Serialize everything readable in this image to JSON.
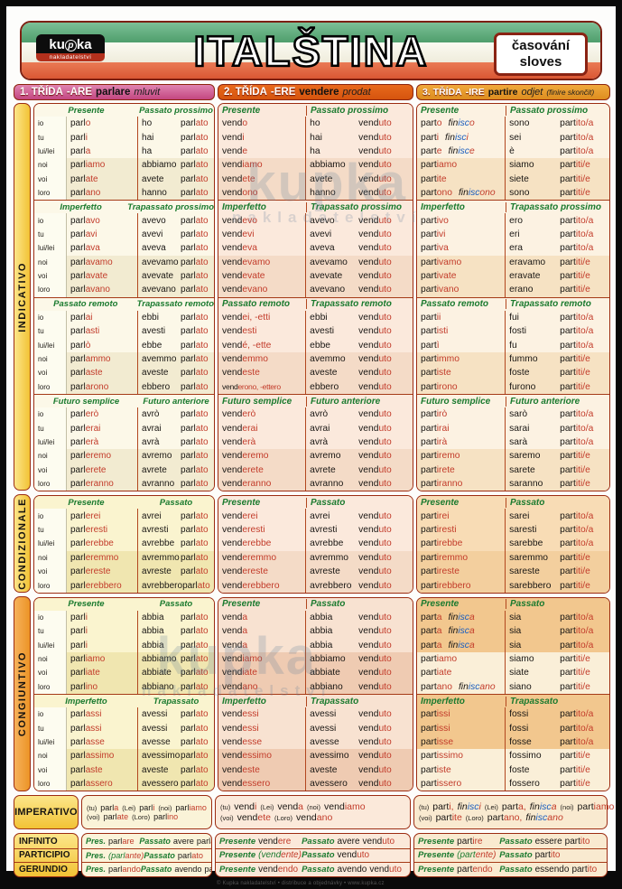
{
  "header": {
    "logo_top": "kupka",
    "logo_sub": "nakladatelství",
    "title": "ITALŠTINA",
    "badge_line1": "časování",
    "badge_line2": "sloves"
  },
  "colors": {
    "flag_green": "#5aa879",
    "flag_white": "#f2efe2",
    "flag_red": "#df6340",
    "ending_red": "#c23b2a",
    "isc_blue": "#1b5ebe",
    "tense_green": "#1a7a2e",
    "border_red": "#9c2c12",
    "class1_pink": "#c34680",
    "class2_orange": "#d5540e",
    "class3_amber": "#dd8d1f"
  },
  "pronouns": [
    "io",
    "tu",
    "lui/lei",
    "noi",
    "voi",
    "loro"
  ],
  "moods": [
    {
      "id": "ind",
      "label": "INDICATIVO",
      "pairs": [
        [
          "Presente",
          "Passato prossimo"
        ],
        [
          "Imperfetto",
          "Trapassato prossimo"
        ],
        [
          "Passato remoto",
          "Trapassato remoto"
        ],
        [
          "Futuro semplice",
          "Futuro anteriore"
        ]
      ]
    },
    {
      "id": "cond",
      "label": "CONDIZIONALE",
      "pairs": [
        [
          "Presente",
          "Passato"
        ]
      ]
    },
    {
      "id": "cong",
      "label": "CONGIUNTIVO",
      "pairs": [
        [
          "Presente",
          "Passato"
        ],
        [
          "Imperfetto",
          "Trapassato"
        ]
      ]
    }
  ],
  "imperativo_label": "IMPERATIVO",
  "nonfinite_labels": [
    "INFINITO",
    "PARTICIPIO",
    "GERUNDIO"
  ],
  "columns": [
    {
      "id": "are",
      "header": {
        "klass": "1. TŘÍDA",
        "suffix": "-ARE",
        "verb": "parlare",
        "translation": "mluvit",
        "note": ""
      },
      "ind": [
        {
          "left": [
            "parl|o",
            "parl|i",
            "parl|a",
            "parl|iamo",
            "parl|ate",
            "parl|ano"
          ],
          "right": [
            "ho parl|ato",
            "hai parl|ato",
            "ha parl|ato",
            "abbiamo parl|ato",
            "avete parl|ato",
            "hanno parl|ato"
          ]
        },
        {
          "left": [
            "parl|avo",
            "parl|avi",
            "parl|ava",
            "parl|avamo",
            "parl|avate",
            "parl|avano"
          ],
          "right": [
            "avevo parl|ato",
            "avevi parl|ato",
            "aveva parl|ato",
            "avevamo parl|ato",
            "avevate parl|ato",
            "avevano parl|ato"
          ]
        },
        {
          "left": [
            "parl|ai",
            "parl|asti",
            "parl|ò",
            "parl|ammo",
            "parl|aste",
            "parl|arono"
          ],
          "right": [
            "ebbi parl|ato",
            "avesti parl|ato",
            "ebbe parl|ato",
            "avemmo parl|ato",
            "aveste parl|ato",
            "ebbero parl|ato"
          ]
        },
        {
          "left": [
            "parl|erò",
            "parl|erai",
            "parl|erà",
            "parl|eremo",
            "parl|erete",
            "parl|eranno"
          ],
          "right": [
            "avrò parl|ato",
            "avrai parl|ato",
            "avrà parl|ato",
            "avremo parl|ato",
            "avrete parl|ato",
            "avranno parl|ato"
          ]
        }
      ],
      "cond": [
        {
          "left": [
            "parl|erei",
            "parl|eresti",
            "parl|erebbe",
            "parl|eremmo",
            "parl|ereste",
            "parl|erebbero"
          ],
          "right": [
            "avrei parl|ato",
            "avresti parl|ato",
            "avrebbe parl|ato",
            "avremmo parl|ato",
            "avreste parl|ato",
            "avrebbero parl|ato"
          ]
        }
      ],
      "cong": [
        {
          "left": [
            "parl|i",
            "parl|i",
            "parl|i",
            "parl|iamo",
            "parl|iate",
            "parl|ino"
          ],
          "right": [
            "abbia parl|ato",
            "abbia parl|ato",
            "abbia parl|ato",
            "abbiamo parl|ato",
            "abbiate parl|ato",
            "abbiano parl|ato"
          ]
        },
        {
          "left": [
            "parl|assi",
            "parl|assi",
            "parl|asse",
            "parl|assimo",
            "parl|aste",
            "parl|assero"
          ],
          "right": [
            "avessi parl|ato",
            "avessi parl|ato",
            "avesse parl|ato",
            "avessimo parl|ato",
            "aveste parl|ato",
            "avessero parl|ato"
          ]
        }
      ],
      "imperativo": [
        [
          "(tu)",
          "parl|a",
          "(Lei)",
          "parl|i",
          "(noi)",
          "parl|iamo"
        ],
        [
          "(voi)",
          "parl|ate",
          "(Loro)",
          "parl|ino"
        ]
      ],
      "nonfinite": [
        {
          "pl": "Pres.",
          "pres": "parl|are",
          "xl": "Passato",
          "past": "avere parl|ato"
        },
        {
          "pl": "Pres.",
          "pres": "(parl|ante)",
          "xl": "Passato",
          "past": "parl|ato"
        },
        {
          "pl": "Pres.",
          "pres": "parl|ando",
          "xl": "Passato",
          "past": "avendo parl|ato"
        }
      ]
    },
    {
      "id": "ere",
      "header": {
        "klass": "2. TŘÍDA",
        "suffix": "-ERE",
        "verb": "vendere",
        "translation": "prodat",
        "note": ""
      },
      "ind": [
        {
          "left": [
            "vend|o",
            "vend|i",
            "vend|e",
            "vend|iamo",
            "vend|ete",
            "vend|ono"
          ],
          "right": [
            "ho vend|uto",
            "hai vend|uto",
            "ha vend|uto",
            "abbiamo vend|uto",
            "avete vend|uto",
            "hanno vend|uto"
          ]
        },
        {
          "left": [
            "vend|evo",
            "vend|evi",
            "vend|eva",
            "vend|evamo",
            "vend|evate",
            "vend|evano"
          ],
          "right": [
            "avevo vend|uto",
            "avevi vend|uto",
            "aveva vend|uto",
            "avevamo vend|uto",
            "avevate vend|uto",
            "avevano vend|uto"
          ]
        },
        {
          "left": [
            "vend|ei, -etti",
            "vend|esti",
            "vend|é, -ette",
            "vend|emmo",
            "vend|este",
            "vend|erono, -ettero"
          ],
          "right": [
            "ebbi vend|uto",
            "avesti vend|uto",
            "ebbe vend|uto",
            "avemmo vend|uto",
            "aveste vend|uto",
            "ebbero vend|uto"
          ]
        },
        {
          "left": [
            "vend|erò",
            "vend|erai",
            "vend|erà",
            "vend|eremo",
            "vend|erete",
            "vend|eranno"
          ],
          "right": [
            "avrò vend|uto",
            "avrai vend|uto",
            "avrà vend|uto",
            "avremo vend|uto",
            "avrete vend|uto",
            "avranno vend|uto"
          ]
        }
      ],
      "cond": [
        {
          "left": [
            "vend|erei",
            "vend|eresti",
            "vend|erebbe",
            "vend|eremmo",
            "vend|ereste",
            "vend|erebbero"
          ],
          "right": [
            "avrei vend|uto",
            "avresti vend|uto",
            "avrebbe vend|uto",
            "avremmo vend|uto",
            "avreste vend|uto",
            "avrebbero vend|uto"
          ]
        }
      ],
      "cong": [
        {
          "left": [
            "vend|a",
            "vend|a",
            "vend|a",
            "vend|iamo",
            "vend|iate",
            "vend|ano"
          ],
          "right": [
            "abbia vend|uto",
            "abbia vend|uto",
            "abbia vend|uto",
            "abbiamo vend|uto",
            "abbiate vend|uto",
            "abbiano vend|uto"
          ]
        },
        {
          "left": [
            "vend|essi",
            "vend|essi",
            "vend|esse",
            "vend|essimo",
            "vend|este",
            "vend|essero"
          ],
          "right": [
            "avessi vend|uto",
            "avessi vend|uto",
            "avesse vend|uto",
            "avessimo vend|uto",
            "aveste vend|uto",
            "avessero vend|uto"
          ]
        }
      ],
      "imperativo": [
        [
          "(tu)",
          "vend|i",
          "(Lei)",
          "vend|a",
          "(noi)",
          "vend|iamo"
        ],
        [
          "(voi)",
          "vend|ete",
          "(Loro)",
          "vend|ano"
        ]
      ],
      "nonfinite": [
        {
          "pl": "Presente",
          "pres": "vend|ere",
          "xl": "Passato",
          "past": "avere vend|uto"
        },
        {
          "pl": "Presente",
          "pres": "(vend|ente)",
          "xl": "Passato",
          "past": "vend|uto"
        },
        {
          "pl": "Presente",
          "pres": "vend|endo",
          "xl": "Passato",
          "past": "avendo vend|uto"
        }
      ]
    },
    {
      "id": "ire",
      "header": {
        "klass": "3. TŘÍDA",
        "suffix": "-IRE",
        "verb": "partire",
        "translation": "odjet",
        "note": "(finire skončit)"
      },
      "ind": [
        {
          "left": [
            [
              "part|o",
              "fin|isc|o"
            ],
            [
              "part|i",
              "fin|isc|i"
            ],
            [
              "part|e",
              "fin|isc|e"
            ],
            "part|iamo",
            "part|ite",
            [
              "part|ono",
              "fin|isc|ono"
            ]
          ],
          "right": [
            "sono part|ito/a",
            "sei part|ito/a",
            "è part|ito/a",
            "siamo part|iti/e",
            "siete part|iti/e",
            "sono part|iti/e"
          ]
        },
        {
          "left": [
            "part|ivo",
            "part|ivi",
            "part|iva",
            "part|ivamo",
            "part|ivate",
            "part|ivano"
          ],
          "right": [
            "ero part|ito/a",
            "eri part|ito/a",
            "era part|ito/a",
            "eravamo part|iti/e",
            "eravate part|iti/e",
            "erano part|iti/e"
          ]
        },
        {
          "left": [
            "part|ii",
            "part|isti",
            "part|ì",
            "part|immo",
            "part|iste",
            "part|irono"
          ],
          "right": [
            "fui part|ito/a",
            "fosti part|ito/a",
            "fu part|ito/a",
            "fummo part|iti/e",
            "foste part|iti/e",
            "furono part|iti/e"
          ]
        },
        {
          "left": [
            "part|irò",
            "part|irai",
            "part|irà",
            "part|iremo",
            "part|irete",
            "part|iranno"
          ],
          "right": [
            "sarò part|ito/a",
            "sarai part|ito/a",
            "sarà part|ito/a",
            "saremo part|iti/e",
            "sarete part|iti/e",
            "saranno part|iti/e"
          ]
        }
      ],
      "cond": [
        {
          "left": [
            "part|irei",
            "part|iresti",
            "part|irebbe",
            "part|iremmo",
            "part|ireste",
            "part|irebbero"
          ],
          "right": [
            "sarei part|ito/a",
            "saresti part|ito/a",
            "sarebbe part|ito/a",
            "saremmo part|iti/e",
            "sareste part|iti/e",
            "sarebbero part|iti/e"
          ]
        }
      ],
      "cong": [
        {
          "left": [
            [
              "part|a",
              "fin|isc|a"
            ],
            [
              "part|a",
              "fin|isc|a"
            ],
            [
              "part|a",
              "fin|isc|a"
            ],
            "part|iamo",
            "part|iate",
            [
              "part|ano",
              "fin|isc|ano"
            ]
          ],
          "right": [
            "sia part|ito/a",
            "sia part|ito/a",
            "sia part|ito/a",
            "siamo part|iti/e",
            "siate part|iti/e",
            "siano part|iti/e"
          ]
        },
        {
          "left": [
            "part|issi",
            "part|issi",
            "part|isse",
            "part|issimo",
            "part|iste",
            "part|issero"
          ],
          "right": [
            "fossi part|ito/a",
            "fossi part|ito/a",
            "fosse part|ito/a",
            "fossimo part|iti/e",
            "foste part|iti/e",
            "fossero part|iti/e"
          ]
        }
      ],
      "imperativo": [
        [
          "(tu)",
          "part|i,",
          "fin|isc|i",
          "(Lei)",
          "part|a,",
          "fin|isc|a",
          "(noi)",
          "part|iamo"
        ],
        [
          "(voi)",
          "part|ite",
          "(Loro)",
          "part|ano,",
          "fin|isc|ano"
        ]
      ],
      "nonfinite": [
        {
          "pl": "Presente",
          "pres": "part|ire",
          "xl": "Passato",
          "past": "essere part|ito"
        },
        {
          "pl": "Presente",
          "pres": "(part|ente)",
          "xl": "Passato",
          "past": "part|ito"
        },
        {
          "pl": "Presente",
          "pres": "part|endo",
          "xl": "Passato",
          "past": "essendo part|ito"
        }
      ]
    }
  ],
  "watermark": {
    "line1": "kupka",
    "line2": "nakladatelství"
  },
  "fine_print": "© Kupka nakladatelství • distribuce a objednávky • www.kupka.cz"
}
